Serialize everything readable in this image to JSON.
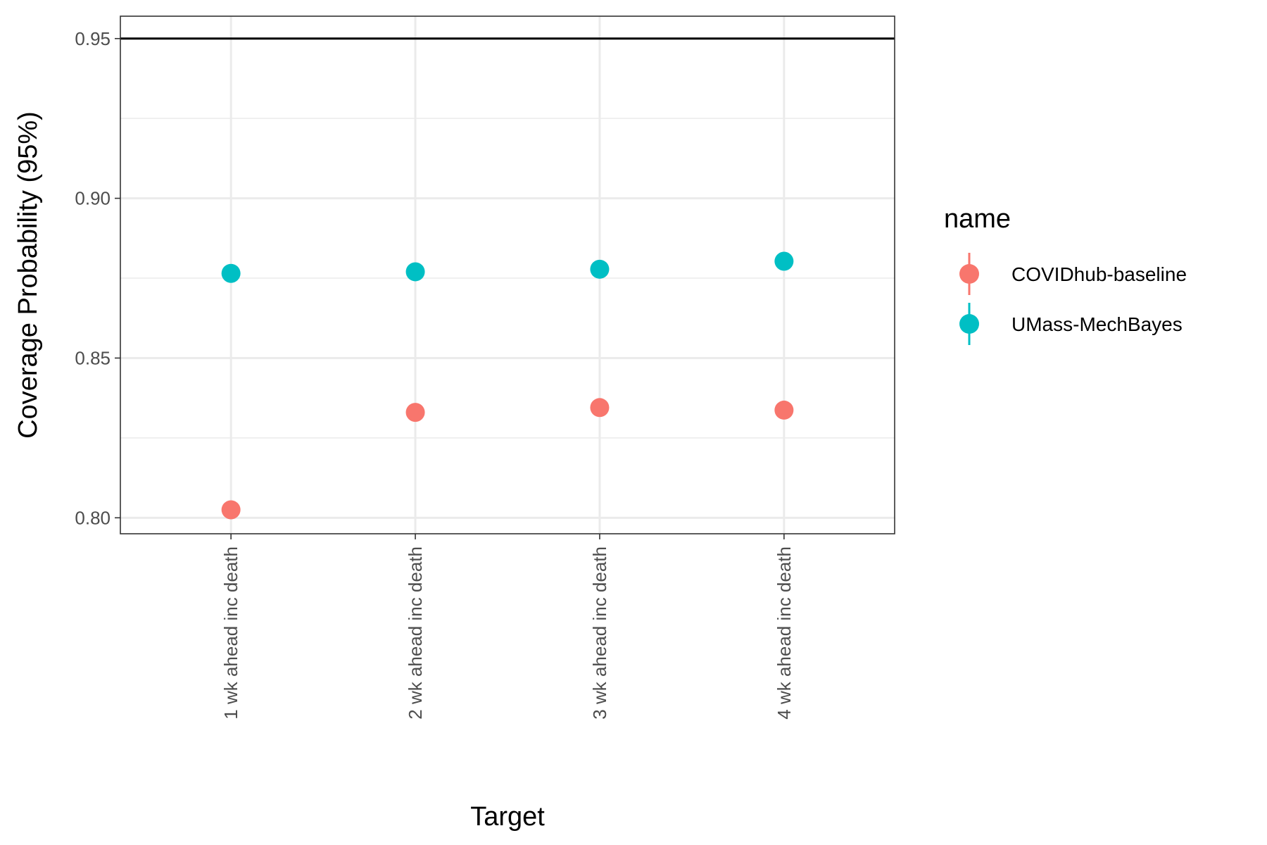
{
  "chart_data": {
    "type": "scatter",
    "xlabel": "Target",
    "ylabel": "Coverage Probability (95%)",
    "categories": [
      "1 wk ahead inc death",
      "2 wk ahead inc death",
      "3 wk ahead inc death",
      "4 wk ahead inc death"
    ],
    "ylim": [
      0.795,
      0.957
    ],
    "yticks": [
      "0.80",
      "0.85",
      "0.90",
      "0.95"
    ],
    "ytick_values": [
      0.8,
      0.85,
      0.9,
      0.95
    ],
    "minor_gridlines": [
      0.825,
      0.875,
      0.925
    ],
    "reference_line": 0.95,
    "grid": true,
    "legend": {
      "title": "name",
      "position": "right"
    },
    "series": [
      {
        "name": "COVIDhub-baseline",
        "color": "#F8766D",
        "values": [
          0.8025,
          0.833,
          0.8345,
          0.8337
        ]
      },
      {
        "name": "UMass-MechBayes",
        "color": "#00BFC4",
        "values": [
          0.8765,
          0.877,
          0.8778,
          0.8803
        ]
      }
    ]
  }
}
